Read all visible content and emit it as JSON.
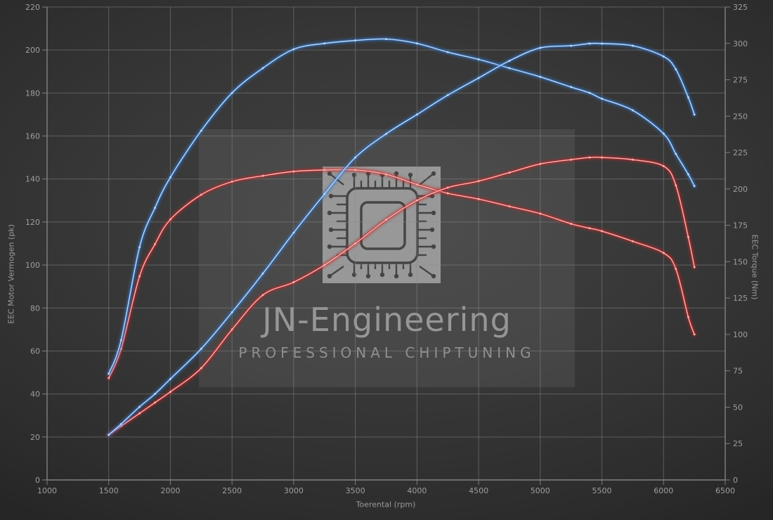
{
  "watermark": {
    "title": "JN-Engineering",
    "subtitle": "Professional Chiptuning"
  },
  "colors": {
    "blue_curve": "#3079d0",
    "blue_core": "#bcd6f2",
    "red_curve": "#c62828",
    "red_core": "#f6b2b2",
    "grid": "#8b8b8b",
    "axis_text": "#9e9e9e",
    "background": "#383838"
  },
  "chart_data": {
    "type": "line",
    "title": "",
    "xlabel": "Toerental (rpm)",
    "ylabel_left": "EEC Motor Vermogen (pk)",
    "ylabel_right": "EEC Torque (Nm)",
    "grid": true,
    "legend": "none",
    "x_range": [
      1000,
      6500
    ],
    "x_ticks": [
      1000,
      1500,
      2000,
      2500,
      3000,
      3500,
      4000,
      4500,
      5000,
      5500,
      6000,
      6500
    ],
    "y_left_range": [
      0,
      220
    ],
    "y_left_ticks": [
      0,
      20,
      40,
      60,
      80,
      100,
      120,
      140,
      160,
      180,
      200,
      220
    ],
    "y_right_range": [
      0,
      325
    ],
    "y_right_ticks": [
      0,
      25,
      50,
      75,
      100,
      125,
      150,
      175,
      200,
      225,
      250,
      275,
      300,
      325
    ],
    "x": [
      1500,
      1600,
      1750,
      1875,
      2000,
      2250,
      2500,
      2750,
      3000,
      3250,
      3500,
      3750,
      4000,
      4250,
      4500,
      4750,
      5000,
      5250,
      5400,
      5500,
      5750,
      6000,
      6100,
      6200,
      6250
    ],
    "series": [
      {
        "name": "torque-red",
        "axis": "right",
        "color": "#c62828",
        "core": "#f6b2b2",
        "values": [
          70,
          90,
          140,
          162,
          179,
          196,
          205,
          209,
          212,
          213,
          213,
          210,
          203,
          197,
          193,
          188,
          183,
          176,
          173,
          171,
          164,
          156,
          145,
          112,
          100
        ]
      },
      {
        "name": "power-red",
        "axis": "left",
        "color": "#c62828",
        "core": "#f6b2b2",
        "values": [
          21,
          25,
          31,
          36,
          41,
          52,
          70,
          86,
          92,
          100,
          110,
          121,
          130,
          136,
          139,
          143,
          147,
          149,
          150,
          150,
          149,
          146,
          137,
          113,
          99
        ]
      },
      {
        "name": "torque-blue",
        "axis": "right",
        "color": "#3079d0",
        "core": "#bcd6f2",
        "values": [
          73,
          96,
          160,
          187,
          208,
          240,
          266,
          283,
          296,
          300,
          302,
          303,
          300,
          294,
          289,
          283,
          277,
          270,
          266,
          262,
          254,
          238,
          224,
          210,
          202
        ]
      },
      {
        "name": "power-blue",
        "axis": "left",
        "color": "#3079d0",
        "core": "#bcd6f2",
        "values": [
          21,
          26,
          34,
          40,
          47,
          61,
          78,
          96,
          115,
          133,
          150,
          161,
          170,
          179,
          187,
          195,
          201,
          202,
          203,
          203,
          202,
          197,
          191,
          178,
          170
        ]
      }
    ]
  }
}
